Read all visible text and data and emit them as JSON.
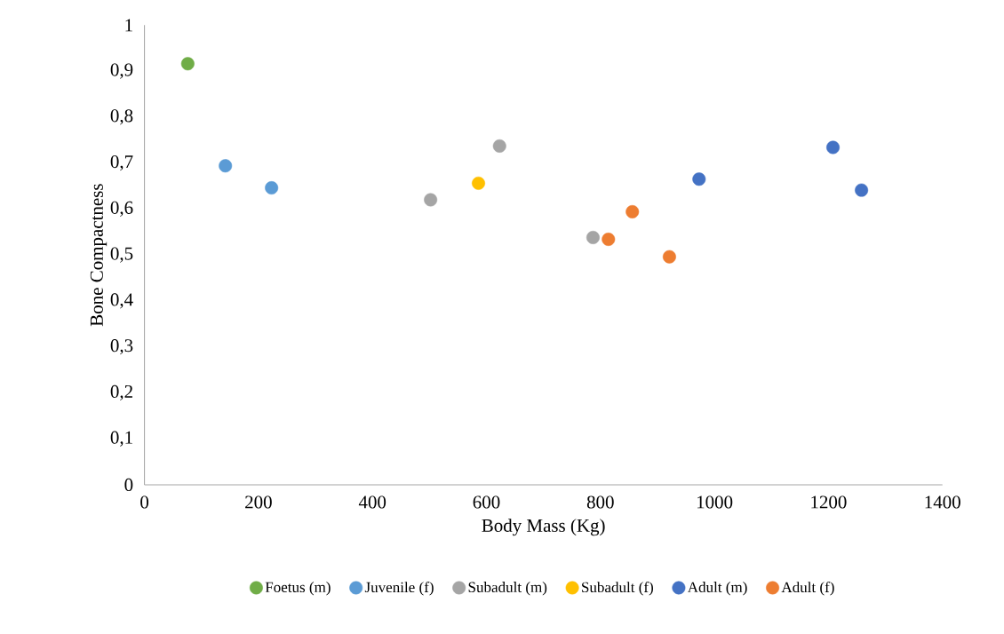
{
  "chart_data": {
    "type": "scatter",
    "xlabel": "Body Mass (Kg)",
    "ylabel": "Bone Compactness",
    "xlim": [
      0,
      1400
    ],
    "ylim": [
      0,
      1
    ],
    "xticks": [
      0,
      200,
      400,
      600,
      800,
      1000,
      1200,
      1400
    ],
    "yticks": [
      0,
      {
        "value": 0.1,
        "label": "0,1"
      },
      {
        "value": 0.2,
        "label": "0,2"
      },
      {
        "value": 0.3,
        "label": "0,3"
      },
      {
        "value": 0.4,
        "label": "0,4"
      },
      {
        "value": 0.5,
        "label": "0,5"
      },
      {
        "value": 0.6,
        "label": "0,6"
      },
      {
        "value": 0.7,
        "label": "0,7"
      },
      {
        "value": 0.8,
        "label": "0,8"
      },
      {
        "value": 0.9,
        "label": "0,9"
      },
      1
    ],
    "grid": false,
    "legend": "bottom",
    "marker": "circle",
    "series": [
      {
        "name": "Foetus (m)",
        "color": "#70ad47",
        "x": [
          76
        ],
        "values": [
          0.916
        ]
      },
      {
        "name": "Juvenile (f)",
        "color": "#5b9bd5",
        "x": [
          142,
          223
        ],
        "values": [
          0.694,
          0.646
        ]
      },
      {
        "name": "Subadult (m)",
        "color": "#a5a5a5",
        "x": [
          502,
          623,
          787
        ],
        "values": [
          0.62,
          0.737,
          0.538
        ]
      },
      {
        "name": "Subadult (f)",
        "color": "#ffc000",
        "x": [
          586
        ],
        "values": [
          0.656
        ]
      },
      {
        "name": "Adult (m)",
        "color": "#4472c4",
        "x": [
          973,
          1208,
          1258
        ],
        "values": [
          0.665,
          0.734,
          0.641
        ]
      },
      {
        "name": "Adult (f)",
        "color": "#ed7d31",
        "x": [
          814,
          856,
          921
        ],
        "values": [
          0.534,
          0.594,
          0.496
        ]
      }
    ]
  }
}
